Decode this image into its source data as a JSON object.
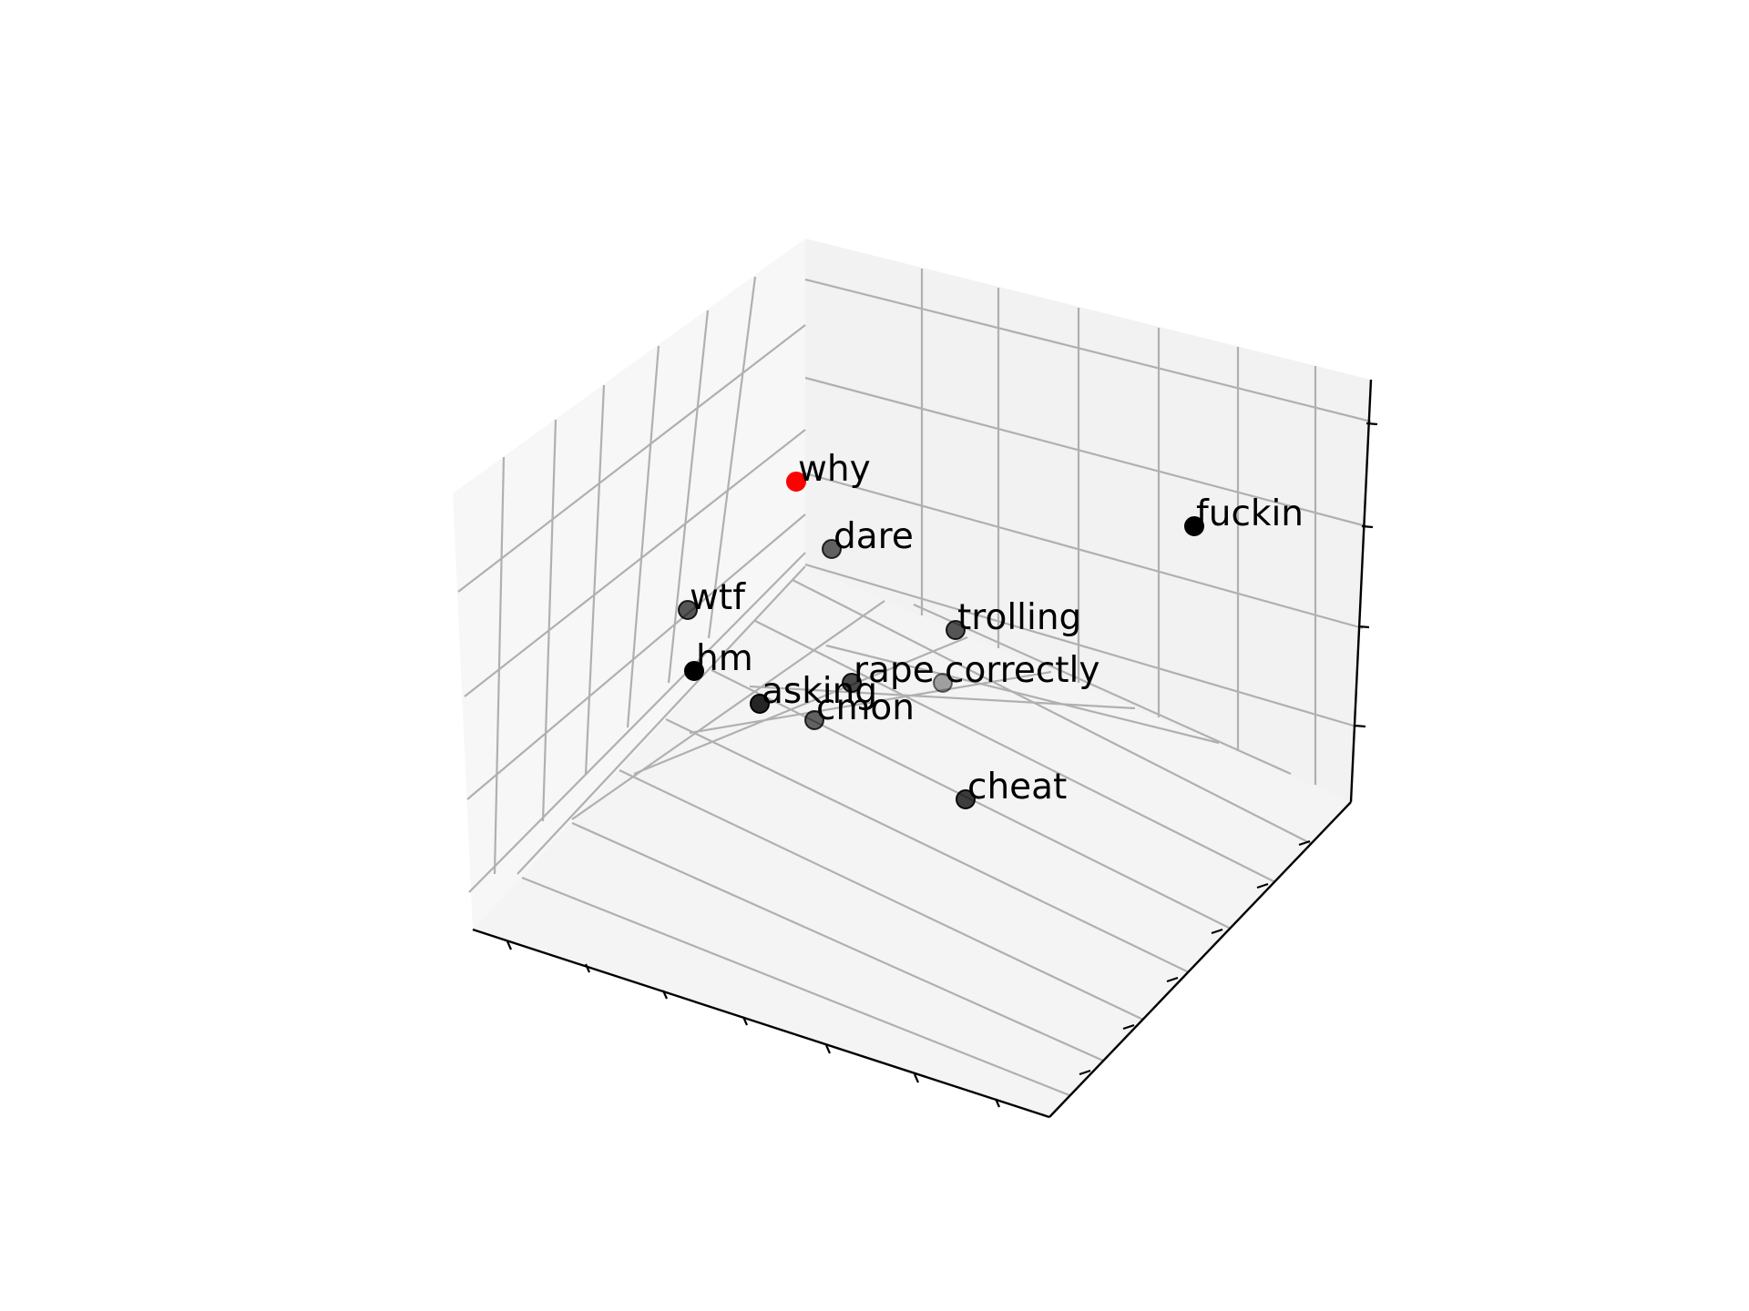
{
  "chart_data": {
    "type": "scatter",
    "projection": "3d",
    "title": "",
    "xlabel": "",
    "ylabel": "",
    "zlabel": "",
    "grid": true,
    "tick_labels_visible": false,
    "highlight_color": "#ff0000",
    "point_color": "#000000",
    "points": [
      {
        "label": "why",
        "highlight": true,
        "opacity": 1.0
      },
      {
        "label": "fuckin",
        "highlight": false,
        "opacity": 1.0
      },
      {
        "label": "dare",
        "highlight": false,
        "opacity": 0.6
      },
      {
        "label": "wtf",
        "highlight": false,
        "opacity": 0.65
      },
      {
        "label": "trolling",
        "highlight": false,
        "opacity": 0.65
      },
      {
        "label": "hm",
        "highlight": false,
        "opacity": 1.0
      },
      {
        "label": "rape",
        "highlight": false,
        "opacity": 0.7
      },
      {
        "label": "correctly",
        "highlight": false,
        "opacity": 0.35
      },
      {
        "label": "asking",
        "highlight": false,
        "opacity": 0.85
      },
      {
        "label": "cmon",
        "highlight": false,
        "opacity": 0.6
      },
      {
        "label": "cheat",
        "highlight": false,
        "opacity": 0.75
      }
    ]
  }
}
